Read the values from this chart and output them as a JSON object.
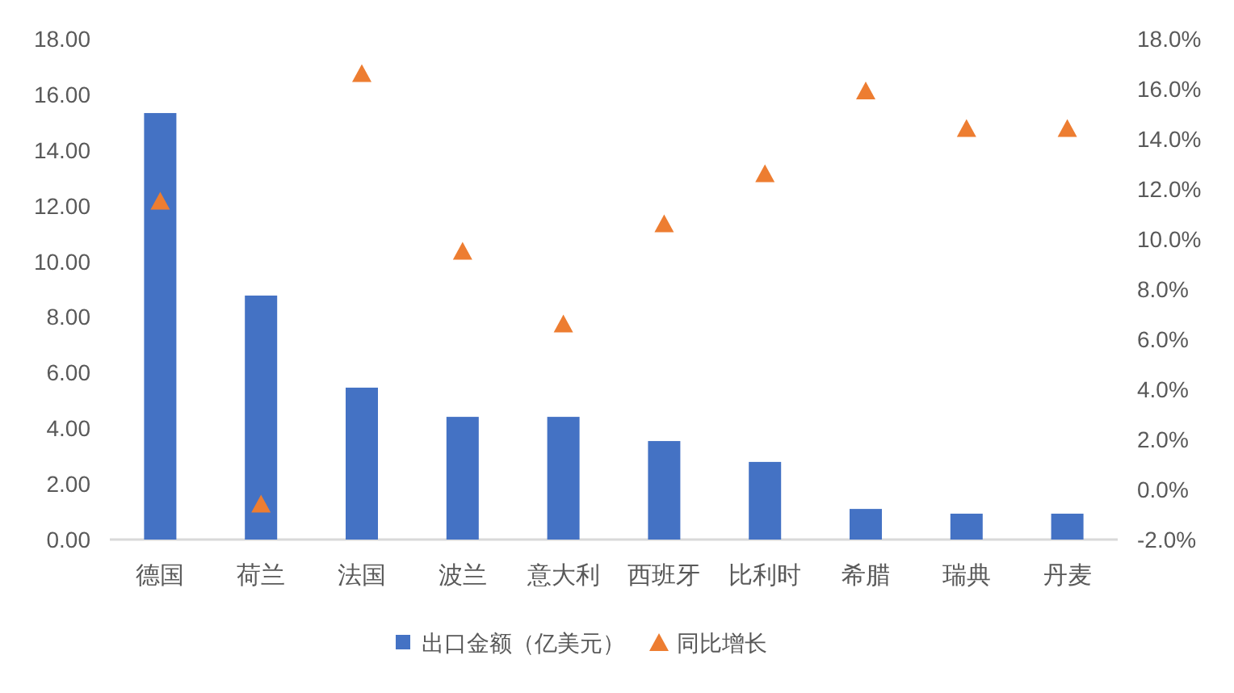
{
  "chart_data": {
    "type": "bar",
    "categories": [
      "德国",
      "荷兰",
      "法国",
      "波兰",
      "意大利",
      "西班牙",
      "比利时",
      "希腊",
      "瑞典",
      "丹麦"
    ],
    "series": [
      {
        "name": "出口金额（亿美元）",
        "color": "#4472c4",
        "values": [
          15.33,
          8.77,
          5.46,
          4.41,
          4.41,
          3.54,
          2.79,
          1.1,
          0.93,
          0.93
        ]
      },
      {
        "name": "同比增长",
        "type": "scatter",
        "axis": "y2",
        "marker": "triangle",
        "color": "#ed7d31",
        "values": [
          11.5,
          -0.6,
          16.6,
          9.5,
          6.6,
          10.6,
          12.6,
          15.9,
          14.4,
          14.4
        ]
      }
    ],
    "ylim": [
      0,
      18
    ],
    "yticks": [
      {
        "value": 0,
        "label": "0.00"
      },
      {
        "value": 2,
        "label": "2.00"
      },
      {
        "value": 4,
        "label": "4.00"
      },
      {
        "value": 6,
        "label": "6.00"
      },
      {
        "value": 8,
        "label": "8.00"
      },
      {
        "value": 10,
        "label": "10.00"
      },
      {
        "value": 12,
        "label": "12.00"
      },
      {
        "value": 14,
        "label": "14.00"
      },
      {
        "value": 16,
        "label": "16.00"
      },
      {
        "value": 18,
        "label": "18.00"
      }
    ],
    "y2lim": [
      -2,
      18
    ],
    "y2ticks": [
      {
        "value": -2,
        "label": "-2.0%"
      },
      {
        "value": 0,
        "label": "0.0%"
      },
      {
        "value": 2,
        "label": "2.0%"
      },
      {
        "value": 4,
        "label": "4.0%"
      },
      {
        "value": 6,
        "label": "6.0%"
      },
      {
        "value": 8,
        "label": "8.0%"
      },
      {
        "value": 10,
        "label": "10.0%"
      },
      {
        "value": 12,
        "label": "12.0%"
      },
      {
        "value": 14,
        "label": "14.0%"
      },
      {
        "value": 16,
        "label": "16.0%"
      },
      {
        "value": 18,
        "label": "18.0%"
      }
    ],
    "legend": "bottom"
  }
}
